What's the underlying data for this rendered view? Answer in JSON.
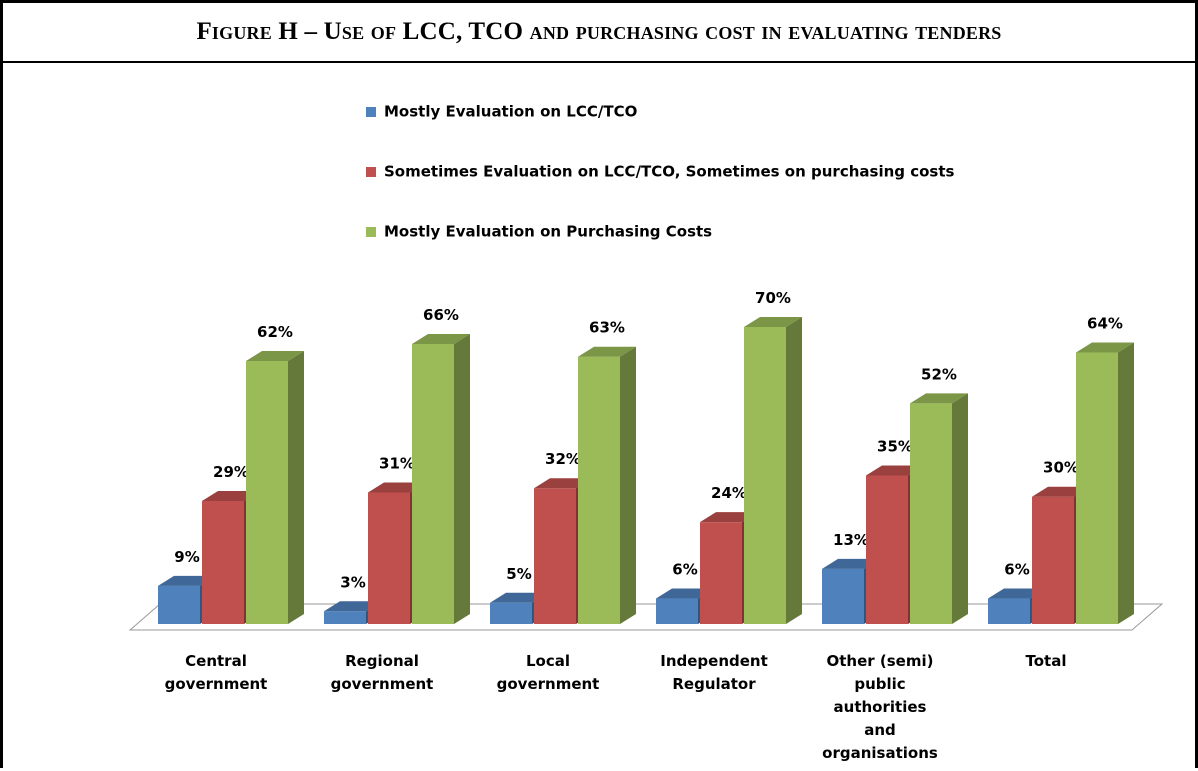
{
  "chart_data": {
    "type": "bar3d",
    "title": "Figure H – Use of LCC, TCO and purchasing cost in evaluating tenders",
    "categories": [
      "Central government",
      "Regional government",
      "Local government",
      "Independent Regulator",
      "Other (semi) public authorities and organisations",
      "Total"
    ],
    "series": [
      {
        "name": "Mostly Evaluation on LCC/TCO",
        "color": "#4f81bd",
        "values": [
          9,
          3,
          5,
          6,
          13,
          6
        ],
        "value_labels": [
          "9%",
          "3%",
          "5%",
          "6%",
          "13%",
          "6%"
        ]
      },
      {
        "name": "Sometimes Evaluation on LCC/TCO, Sometimes on purchasing costs",
        "color": "#c0504d",
        "values": [
          29,
          31,
          32,
          24,
          35,
          30
        ],
        "value_labels": [
          "29%",
          "31%",
          "32%",
          "24%",
          "35%",
          "30%"
        ]
      },
      {
        "name": "Mostly Evaluation on Purchasing Costs",
        "color": "#9bbb59",
        "values": [
          62,
          66,
          63,
          70,
          52,
          64
        ],
        "value_labels": [
          "62%",
          "66%",
          "63%",
          "70%",
          "52%",
          "64%"
        ]
      }
    ],
    "legend": "top"
  }
}
